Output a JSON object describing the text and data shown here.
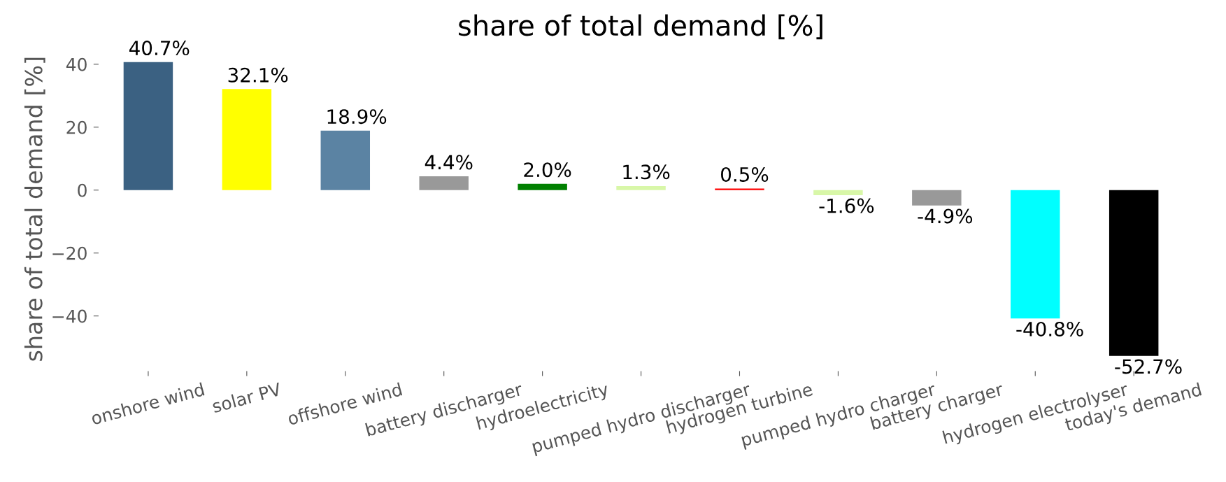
{
  "chart_data": {
    "type": "bar",
    "title": "share of total demand [%]",
    "ylabel": "share of total demand [%]",
    "categories": [
      "onshore wind",
      "solar PV",
      "offshore wind",
      "battery discharger",
      "hydroelectricity",
      "pumped hydro discharger",
      "hydrogen turbine",
      "pumped hydro charger",
      "battery charger",
      "hydrogen electrolyser",
      "today's demand"
    ],
    "values": [
      40.7,
      32.1,
      18.9,
      4.4,
      2.0,
      1.3,
      0.5,
      -1.6,
      -4.9,
      -40.8,
      -52.7
    ],
    "colors": [
      "#3b6182",
      "#ffff00",
      "#5b83a3",
      "#999999",
      "#008000",
      "#d8f7a8",
      "#ff0000",
      "#d8f7a8",
      "#999999",
      "#00ffff",
      "#000000"
    ],
    "value_labels": [
      "40.7%",
      "32.1%",
      "18.9%",
      "4.4%",
      "2.0%",
      "1.3%",
      "0.5%",
      "-1.6%",
      "-4.9%",
      "-40.8%",
      "-52.7%"
    ],
    "ylim": [
      -57.4,
      45.4
    ],
    "yticks": [
      {
        "value": -40,
        "label": "−40"
      },
      {
        "value": -20,
        "label": "−20"
      },
      0,
      20,
      40
    ],
    "grid": false,
    "legend": false
  }
}
